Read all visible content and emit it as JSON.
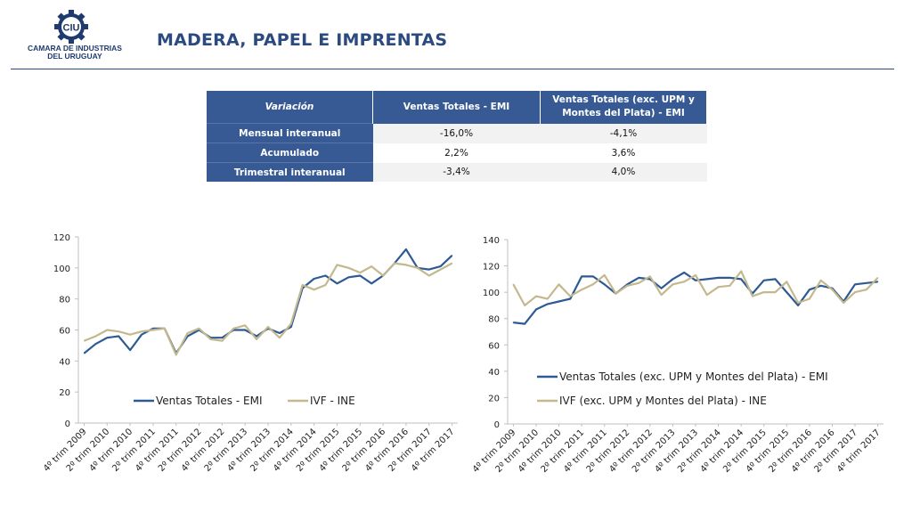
{
  "header": {
    "logo_mark": "CIU",
    "logo_line1": "CAMARA DE INDUSTRIAS",
    "logo_line2": "DEL URUGUAY",
    "title": "MADERA, PAPEL E IMPRENTAS"
  },
  "colors": {
    "primary": "#2b4a7f",
    "table_header": "#375a95",
    "series_emi": "#2e5a94",
    "series_ine": "#c4b88f"
  },
  "table": {
    "headers": [
      "Variación",
      "Ventas Totales - EMI",
      "Ventas Totales (exc. UPM y Montes del Plata) - EMI"
    ],
    "rows": [
      {
        "label": "Mensual interanual",
        "v1": "-16,0%",
        "v2": "-4,1%"
      },
      {
        "label": "Acumulado",
        "v1": "2,2%",
        "v2": "3,6%"
      },
      {
        "label": "Trimestral interanual",
        "v1": "-3,4%",
        "v2": "4,0%"
      }
    ]
  },
  "chart_data": [
    {
      "type": "line",
      "x_labels": [
        "4º trim 2009",
        "2º trim 2010",
        "4º trim 2010",
        "2º trim 2011",
        "4º trim 2011",
        "2º trim 2012",
        "4º trim 2012",
        "2º trim 2013",
        "4º trim 2013",
        "2º trim 2014",
        "4º trim 2014",
        "2º trim 2015",
        "4º trim 2015",
        "2º trim 2016",
        "4º trim 2016",
        "2º trim 2017",
        "4º trim 2017"
      ],
      "ylim": [
        0,
        120
      ],
      "yticks": [
        0,
        20,
        40,
        60,
        80,
        100,
        120
      ],
      "legend_position": "bottom",
      "series": [
        {
          "name": "Ventas Totales - EMI",
          "values": [
            45,
            51,
            55,
            56,
            47,
            57,
            61,
            61,
            45,
            56,
            60,
            55,
            55,
            60,
            60,
            56,
            61,
            58,
            62,
            87,
            93,
            95,
            90,
            94,
            95,
            90,
            95,
            103,
            112,
            100,
            99,
            101,
            108
          ]
        },
        {
          "name": "IVF - INE",
          "values": [
            53,
            56,
            60,
            59,
            57,
            59,
            60,
            61,
            44,
            58,
            61,
            54,
            53,
            61,
            63,
            54,
            62,
            55,
            64,
            89,
            86,
            89,
            102,
            100,
            97,
            101,
            95,
            103,
            102,
            100,
            95,
            99,
            103
          ]
        }
      ]
    },
    {
      "type": "line",
      "x_labels": [
        "4º trim 2009",
        "2º trim 2010",
        "4º trim 2010",
        "2º trim 2011",
        "4º trim 2011",
        "2º trim 2012",
        "4º trim 2012",
        "2º trim 2013",
        "4º trim 2013",
        "2º trim 2014",
        "4º trim 2014",
        "2º trim 2015",
        "4º trim 2015",
        "2º trim 2016",
        "4º trim 2016",
        "2º trim 2017",
        "4º trim 2017"
      ],
      "ylim": [
        0,
        140
      ],
      "yticks": [
        0,
        20,
        40,
        60,
        80,
        100,
        120,
        140
      ],
      "legend_position": "bottom",
      "series": [
        {
          "name": "Ventas Totales (exc. UPM y Montes del Plata) - EMI",
          "values": [
            77,
            76,
            87,
            91,
            93,
            95,
            112,
            112,
            106,
            99,
            106,
            111,
            110,
            103,
            110,
            115,
            109,
            110,
            111,
            111,
            110,
            99,
            109,
            110,
            100,
            90,
            102,
            105,
            103,
            93,
            106,
            107,
            108
          ]
        },
        {
          "name": "IVF (exc. UPM y Montes del Plata) - INE",
          "values": [
            106,
            90,
            97,
            95,
            106,
            97,
            102,
            106,
            113,
            99,
            105,
            107,
            112,
            98,
            106,
            108,
            113,
            98,
            104,
            105,
            116,
            97,
            100,
            100,
            108,
            92,
            95,
            109,
            102,
            92,
            100,
            102,
            111
          ]
        }
      ]
    }
  ]
}
